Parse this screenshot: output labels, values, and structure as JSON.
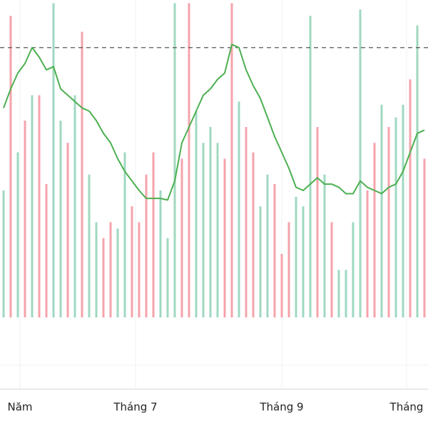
{
  "chart_data": {
    "type": "volume-line",
    "x": [
      0,
      1,
      2,
      3,
      4,
      5,
      6,
      7,
      8,
      9,
      10,
      11,
      12,
      13,
      14,
      15,
      16,
      17,
      18,
      19,
      20,
      21,
      22,
      23,
      24,
      25,
      26,
      27,
      28,
      29,
      30,
      31,
      32,
      33,
      34,
      35,
      36,
      37,
      38,
      39,
      40,
      41,
      42,
      43,
      44,
      45,
      46,
      47,
      48,
      49,
      50,
      51,
      52,
      53,
      54,
      55,
      56,
      57,
      58,
      59
    ],
    "xlim": [
      -0.5,
      59.5
    ],
    "xticks": [
      {
        "value": 2.3,
        "label": "Năm"
      },
      {
        "value": 18.5,
        "label": "Tháng 7"
      },
      {
        "value": 39,
        "label": "Tháng 9"
      },
      {
        "value": 56.5,
        "label": "Tháng"
      }
    ],
    "ylim": [
      0,
      100
    ],
    "volume": {
      "values": [
        40,
        95,
        52,
        62,
        70,
        70,
        42,
        99,
        62,
        55,
        70,
        90,
        45,
        30,
        25,
        30,
        28,
        52,
        35,
        30,
        45,
        52,
        40,
        25,
        99,
        50,
        99,
        65,
        55,
        60,
        55,
        50,
        99,
        68,
        60,
        52,
        35,
        45,
        42,
        20,
        30,
        38,
        35,
        95,
        60,
        45,
        30,
        15,
        15,
        30,
        97,
        40,
        55,
        67,
        60,
        63,
        67,
        75,
        92,
        50
      ],
      "colors": [
        "#9fd8c0",
        "#f5a3ab",
        "#9fd8c0",
        "#f5a3ab",
        "#9fd8c0",
        "#f5a3ab",
        "#f5a3ab",
        "#9fd8c0",
        "#9fd8c0",
        "#f5a3ab",
        "#9fd8c0",
        "#f5a3ab",
        "#9fd8c0",
        "#9fd8c0",
        "#f5a3ab",
        "#f5a3ab",
        "#9fd8c0",
        "#9fd8c0",
        "#f5a3ab",
        "#f5a3ab",
        "#f5a3ab",
        "#f5a3ab",
        "#9fd8c0",
        "#9fd8c0",
        "#9fd8c0",
        "#f5a3ab",
        "#f5a3ab",
        "#9fd8c0",
        "#9fd8c0",
        "#9fd8c0",
        "#9fd8c0",
        "#f5a3ab",
        "#f5a3ab",
        "#9fd8c0",
        "#f5a3ab",
        "#f5a3ab",
        "#9fd8c0",
        "#9fd8c0",
        "#f5a3ab",
        "#f5a3ab",
        "#f5a3ab",
        "#9fd8c0",
        "#9fd8c0",
        "#9fd8c0",
        "#f5a3ab",
        "#9fd8c0",
        "#f5a3ab",
        "#9fd8c0",
        "#9fd8c0",
        "#9fd8c0",
        "#9fd8c0",
        "#f5a3ab",
        "#f5a3ab",
        "#9fd8c0",
        "#f5a3ab",
        "#9fd8c0",
        "#9fd8c0",
        "#f5a3ab",
        "#9fd8c0",
        "#f5a3ab"
      ]
    },
    "line": {
      "color": "#4caf50",
      "values": [
        66,
        72,
        77,
        80,
        85,
        82,
        78,
        79,
        72,
        70,
        68,
        66,
        65,
        62,
        58,
        55,
        50,
        46,
        43,
        40,
        37.5,
        37.5,
        37.5,
        37,
        43,
        55,
        60,
        65,
        70,
        72,
        75,
        77,
        86,
        85,
        78,
        73,
        69,
        63,
        57,
        52,
        47,
        41,
        40,
        42,
        44,
        42,
        42,
        41,
        39,
        39,
        43,
        41,
        40,
        39,
        41,
        42,
        46,
        52,
        58,
        59
      ]
    },
    "reference_line": {
      "value": 85,
      "color": "#555555"
    },
    "grid": true
  }
}
